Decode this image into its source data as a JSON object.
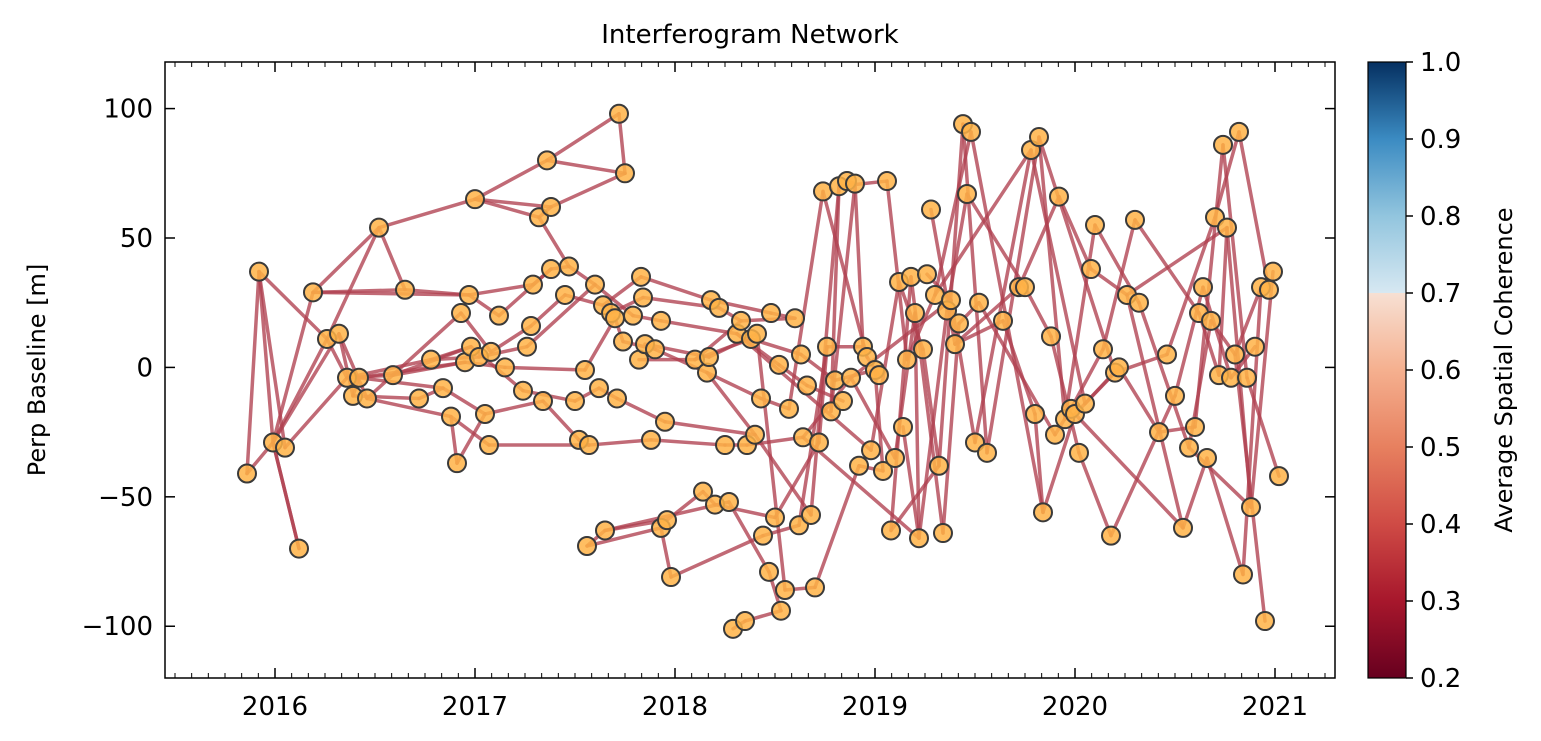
{
  "chart_data": {
    "type": "network",
    "title": "Interferogram Network",
    "xlabel": "",
    "ylabel": "Perp Baseline [m]",
    "x_unit": "year",
    "xlim": [
      2015.45,
      2021.3
    ],
    "ylim": [
      -120,
      118
    ],
    "x_ticks": [
      2016,
      2017,
      2018,
      2019,
      2020,
      2021
    ],
    "x_tick_labels": [
      "2016",
      "2017",
      "2018",
      "2019",
      "2020",
      "2021"
    ],
    "y_ticks": [
      -100,
      -50,
      0,
      50,
      100
    ],
    "y_tick_labels": [
      "−100",
      "−50",
      "0",
      "50",
      "100"
    ],
    "grid": false,
    "colorbar": {
      "label": "Average Spatial Coherence",
      "range": [
        0.2,
        1.0
      ],
      "ticks": [
        0.2,
        0.3,
        0.4,
        0.5,
        0.6,
        0.7,
        0.8,
        0.9,
        1.0
      ],
      "tick_labels": [
        "0.2",
        "0.3",
        "0.4",
        "0.5",
        "0.6",
        "0.7",
        "0.8",
        "0.9",
        "1.0"
      ],
      "masked_below": 0.7
    },
    "colors": {
      "node_fill": "#ffb347",
      "node_edge": "#3a3a3a",
      "edge": "#b0404f"
    },
    "edge_coherence": 0.38,
    "nodes": [
      [
        2015.86,
        -41
      ],
      [
        2015.92,
        37
      ],
      [
        2015.99,
        -29
      ],
      [
        2016.05,
        -31
      ],
      [
        2016.12,
        -70
      ],
      [
        2016.19,
        29
      ],
      [
        2016.26,
        11
      ],
      [
        2016.32,
        13
      ],
      [
        2016.36,
        -4
      ],
      [
        2016.39,
        -11
      ],
      [
        2016.42,
        -4
      ],
      [
        2016.46,
        -12
      ],
      [
        2016.52,
        54
      ],
      [
        2016.59,
        -3
      ],
      [
        2016.65,
        30
      ],
      [
        2016.72,
        -12
      ],
      [
        2016.78,
        3
      ],
      [
        2016.84,
        -8
      ],
      [
        2016.88,
        -19
      ],
      [
        2016.91,
        -37
      ],
      [
        2016.93,
        21
      ],
      [
        2016.95,
        2
      ],
      [
        2016.97,
        28
      ],
      [
        2016.98,
        8
      ],
      [
        2017.0,
        65
      ],
      [
        2017.02,
        4
      ],
      [
        2017.05,
        -18
      ],
      [
        2017.07,
        -30
      ],
      [
        2017.08,
        6
      ],
      [
        2017.12,
        20
      ],
      [
        2017.15,
        0
      ],
      [
        2017.24,
        -9
      ],
      [
        2017.26,
        8
      ],
      [
        2017.28,
        16
      ],
      [
        2017.29,
        32
      ],
      [
        2017.32,
        58
      ],
      [
        2017.34,
        -13
      ],
      [
        2017.36,
        80
      ],
      [
        2017.38,
        62
      ],
      [
        2017.38,
        38
      ],
      [
        2017.45,
        28
      ],
      [
        2017.47,
        39
      ],
      [
        2017.5,
        -13
      ],
      [
        2017.52,
        -28
      ],
      [
        2017.55,
        -1
      ],
      [
        2017.56,
        -69
      ],
      [
        2017.57,
        -30
      ],
      [
        2017.6,
        32
      ],
      [
        2017.62,
        -8
      ],
      [
        2017.64,
        24
      ],
      [
        2017.65,
        -63
      ],
      [
        2017.68,
        21
      ],
      [
        2017.7,
        19
      ],
      [
        2017.71,
        -12
      ],
      [
        2017.72,
        98
      ],
      [
        2017.74,
        10
      ],
      [
        2017.75,
        75
      ],
      [
        2017.79,
        20
      ],
      [
        2017.82,
        3
      ],
      [
        2017.83,
        35
      ],
      [
        2017.84,
        27
      ],
      [
        2017.85,
        9
      ],
      [
        2017.88,
        -28
      ],
      [
        2017.9,
        7
      ],
      [
        2017.93,
        18
      ],
      [
        2017.93,
        -62
      ],
      [
        2017.95,
        -21
      ],
      [
        2017.96,
        -59
      ],
      [
        2017.98,
        -81
      ],
      [
        2018.1,
        3
      ],
      [
        2018.14,
        -48
      ],
      [
        2018.16,
        -2
      ],
      [
        2018.17,
        4
      ],
      [
        2018.18,
        26
      ],
      [
        2018.2,
        -53
      ],
      [
        2018.22,
        23
      ],
      [
        2018.25,
        -30
      ],
      [
        2018.27,
        -52
      ],
      [
        2018.29,
        -101
      ],
      [
        2018.31,
        13
      ],
      [
        2018.33,
        18
      ],
      [
        2018.35,
        -98
      ],
      [
        2018.36,
        -30
      ],
      [
        2018.38,
        11
      ],
      [
        2018.4,
        -26
      ],
      [
        2018.41,
        13
      ],
      [
        2018.43,
        -12
      ],
      [
        2018.44,
        -65
      ],
      [
        2018.47,
        -79
      ],
      [
        2018.48,
        21
      ],
      [
        2018.5,
        -58
      ],
      [
        2018.52,
        1
      ],
      [
        2018.53,
        -94
      ],
      [
        2018.55,
        -86
      ],
      [
        2018.57,
        -16
      ],
      [
        2018.6,
        19
      ],
      [
        2018.62,
        -61
      ],
      [
        2018.63,
        5
      ],
      [
        2018.64,
        -27
      ],
      [
        2018.66,
        -7
      ],
      [
        2018.68,
        -57
      ],
      [
        2018.7,
        -85
      ],
      [
        2018.72,
        -29
      ],
      [
        2018.74,
        68
      ],
      [
        2018.76,
        8
      ],
      [
        2018.78,
        -17
      ],
      [
        2018.8,
        -5
      ],
      [
        2018.82,
        70
      ],
      [
        2018.84,
        -13
      ],
      [
        2018.86,
        72
      ],
      [
        2018.88,
        -4
      ],
      [
        2018.9,
        71
      ],
      [
        2018.92,
        -38
      ],
      [
        2018.94,
        8
      ],
      [
        2018.96,
        4
      ],
      [
        2018.98,
        -32
      ],
      [
        2019.0,
        -1
      ],
      [
        2019.02,
        -3
      ],
      [
        2019.04,
        -40
      ],
      [
        2019.06,
        72
      ],
      [
        2019.08,
        -63
      ],
      [
        2019.1,
        -35
      ],
      [
        2019.12,
        33
      ],
      [
        2019.14,
        -23
      ],
      [
        2019.16,
        3
      ],
      [
        2019.18,
        35
      ],
      [
        2019.2,
        21
      ],
      [
        2019.22,
        -66
      ],
      [
        2019.24,
        7
      ],
      [
        2019.26,
        36
      ],
      [
        2019.28,
        61
      ],
      [
        2019.3,
        28
      ],
      [
        2019.32,
        -38
      ],
      [
        2019.34,
        -64
      ],
      [
        2019.36,
        22
      ],
      [
        2019.38,
        26
      ],
      [
        2019.4,
        9
      ],
      [
        2019.42,
        17
      ],
      [
        2019.44,
        94
      ],
      [
        2019.46,
        67
      ],
      [
        2019.48,
        91
      ],
      [
        2019.5,
        -29
      ],
      [
        2019.52,
        25
      ],
      [
        2019.56,
        -33
      ],
      [
        2019.64,
        18
      ],
      [
        2019.72,
        31
      ],
      [
        2019.75,
        31
      ],
      [
        2019.78,
        84
      ],
      [
        2019.8,
        -18
      ],
      [
        2019.82,
        89
      ],
      [
        2019.84,
        -56
      ],
      [
        2019.88,
        12
      ],
      [
        2019.9,
        -26
      ],
      [
        2019.92,
        66
      ],
      [
        2019.95,
        -20
      ],
      [
        2019.98,
        -16
      ],
      [
        2020.0,
        -18
      ],
      [
        2020.02,
        -33
      ],
      [
        2020.05,
        -14
      ],
      [
        2020.08,
        38
      ],
      [
        2020.1,
        55
      ],
      [
        2020.14,
        7
      ],
      [
        2020.18,
        -65
      ],
      [
        2020.2,
        -2
      ],
      [
        2020.22,
        0
      ],
      [
        2020.26,
        28
      ],
      [
        2020.3,
        57
      ],
      [
        2020.32,
        25
      ],
      [
        2020.42,
        -25
      ],
      [
        2020.46,
        5
      ],
      [
        2020.5,
        -11
      ],
      [
        2020.54,
        -62
      ],
      [
        2020.57,
        -31
      ],
      [
        2020.6,
        -23
      ],
      [
        2020.62,
        21
      ],
      [
        2020.64,
        31
      ],
      [
        2020.66,
        -35
      ],
      [
        2020.68,
        18
      ],
      [
        2020.7,
        58
      ],
      [
        2020.72,
        -3
      ],
      [
        2020.74,
        86
      ],
      [
        2020.76,
        54
      ],
      [
        2020.78,
        -4
      ],
      [
        2020.8,
        5
      ],
      [
        2020.82,
        91
      ],
      [
        2020.84,
        -80
      ],
      [
        2020.86,
        -4
      ],
      [
        2020.88,
        -54
      ],
      [
        2020.9,
        8
      ],
      [
        2020.93,
        31
      ],
      [
        2020.95,
        -98
      ],
      [
        2020.97,
        30
      ],
      [
        2020.99,
        37
      ],
      [
        2021.02,
        -42
      ]
    ],
    "edges": [
      [
        0,
        1
      ],
      [
        0,
        2
      ],
      [
        1,
        2
      ],
      [
        1,
        3
      ],
      [
        1,
        6
      ],
      [
        2,
        4
      ],
      [
        2,
        5
      ],
      [
        2,
        6
      ],
      [
        2,
        7
      ],
      [
        3,
        8
      ],
      [
        5,
        12
      ],
      [
        5,
        14
      ],
      [
        5,
        22
      ],
      [
        6,
        12
      ],
      [
        6,
        8
      ],
      [
        7,
        11
      ],
      [
        7,
        9
      ],
      [
        8,
        13
      ],
      [
        8,
        16
      ],
      [
        9,
        10
      ],
      [
        9,
        15
      ],
      [
        10,
        17
      ],
      [
        10,
        21
      ],
      [
        11,
        18
      ],
      [
        11,
        20
      ],
      [
        12,
        14
      ],
      [
        12,
        24
      ],
      [
        13,
        21
      ],
      [
        13,
        23
      ],
      [
        14,
        22
      ],
      [
        15,
        17
      ],
      [
        16,
        25
      ],
      [
        16,
        23
      ],
      [
        17,
        26
      ],
      [
        18,
        27
      ],
      [
        18,
        19
      ],
      [
        19,
        26
      ],
      [
        20,
        28
      ],
      [
        21,
        30
      ],
      [
        22,
        29
      ],
      [
        22,
        34
      ],
      [
        23,
        31
      ],
      [
        24,
        35
      ],
      [
        24,
        37
      ],
      [
        24,
        38
      ],
      [
        25,
        32
      ],
      [
        26,
        36
      ],
      [
        27,
        46
      ],
      [
        28,
        33
      ],
      [
        29,
        39
      ],
      [
        30,
        44
      ],
      [
        31,
        42
      ],
      [
        32,
        47
      ],
      [
        33,
        40
      ],
      [
        34,
        39
      ],
      [
        35,
        38
      ],
      [
        35,
        41
      ],
      [
        36,
        43
      ],
      [
        37,
        54
      ],
      [
        37,
        56
      ],
      [
        38,
        56
      ],
      [
        39,
        41
      ],
      [
        40,
        49
      ],
      [
        41,
        47
      ],
      [
        42,
        48
      ],
      [
        43,
        46
      ],
      [
        44,
        52
      ],
      [
        45,
        50
      ],
      [
        45,
        65
      ],
      [
        46,
        62
      ],
      [
        47,
        57
      ],
      [
        48,
        53
      ],
      [
        49,
        59
      ],
      [
        50,
        67
      ],
      [
        50,
        77
      ],
      [
        51,
        60
      ],
      [
        52,
        55
      ],
      [
        53,
        66
      ],
      [
        54,
        56
      ],
      [
        55,
        63
      ],
      [
        57,
        64
      ],
      [
        58,
        69
      ],
      [
        59,
        73
      ],
      [
        60,
        75
      ],
      [
        61,
        72
      ],
      [
        62,
        76
      ],
      [
        63,
        71
      ],
      [
        64,
        79
      ],
      [
        65,
        68
      ],
      [
        66,
        84
      ],
      [
        67,
        70
      ],
      [
        68,
        87
      ],
      [
        69,
        83
      ],
      [
        70,
        74
      ],
      [
        71,
        86
      ],
      [
        72,
        85
      ],
      [
        73,
        89
      ],
      [
        74,
        90
      ],
      [
        75,
        80
      ],
      [
        76,
        82
      ],
      [
        77,
        88
      ],
      [
        78,
        81
      ],
      [
        79,
        91
      ],
      [
        80,
        95
      ],
      [
        81,
        92
      ],
      [
        82,
        98
      ],
      [
        83,
        97
      ],
      [
        84,
        100
      ],
      [
        85,
        93
      ],
      [
        86,
        94
      ],
      [
        87,
        96
      ],
      [
        88,
        92
      ],
      [
        89,
        95
      ],
      [
        90,
        102
      ],
      [
        91,
        99
      ],
      [
        93,
        101
      ],
      [
        94,
        103
      ],
      [
        96,
        104
      ],
      [
        97,
        106
      ],
      [
        98,
        110
      ],
      [
        99,
        108
      ],
      [
        100,
        107
      ],
      [
        101,
        112
      ],
      [
        102,
        104
      ],
      [
        103,
        114
      ],
      [
        104,
        113
      ],
      [
        105,
        107
      ],
      [
        105,
        111
      ],
      [
        106,
        116
      ],
      [
        107,
        119
      ],
      [
        109,
        111
      ],
      [
        110,
        121
      ],
      [
        111,
        113
      ],
      [
        112,
        118
      ],
      [
        114,
        117
      ],
      [
        115,
        122
      ],
      [
        116,
        118
      ],
      [
        119,
        124
      ],
      [
        120,
        125
      ],
      [
        121,
        126
      ],
      [
        122,
        128
      ],
      [
        123,
        127
      ],
      [
        124,
        131
      ],
      [
        125,
        133
      ],
      [
        126,
        127
      ],
      [
        127,
        134
      ],
      [
        128,
        132
      ],
      [
        129,
        135
      ],
      [
        130,
        136
      ],
      [
        131,
        140
      ],
      [
        132,
        138
      ],
      [
        133,
        137
      ],
      [
        134,
        139
      ],
      [
        135,
        141
      ],
      [
        136,
        145
      ],
      [
        137,
        142
      ],
      [
        138,
        143
      ],
      [
        139,
        146
      ],
      [
        140,
        150
      ],
      [
        141,
        147
      ],
      [
        142,
        152
      ],
      [
        143,
        149
      ],
      [
        144,
        148
      ],
      [
        145,
        153
      ],
      [
        146,
        151
      ],
      [
        147,
        158
      ],
      [
        148,
        150
      ],
      [
        149,
        154
      ],
      [
        150,
        156
      ],
      [
        151,
        157
      ],
      [
        152,
        155
      ],
      [
        153,
        159
      ],
      [
        154,
        160
      ],
      [
        155,
        161
      ],
      [
        156,
        163
      ],
      [
        157,
        162
      ],
      [
        158,
        164
      ],
      [
        159,
        165
      ],
      [
        160,
        167
      ],
      [
        161,
        166
      ],
      [
        162,
        170
      ],
      [
        163,
        169
      ],
      [
        164,
        168
      ],
      [
        165,
        171
      ],
      [
        166,
        174
      ],
      [
        167,
        172
      ],
      [
        168,
        173
      ],
      [
        169,
        178
      ],
      [
        170,
        175
      ],
      [
        171,
        176
      ],
      [
        172,
        177
      ],
      [
        173,
        180
      ],
      [
        174,
        179
      ],
      [
        175,
        182
      ],
      [
        176,
        185
      ],
      [
        177,
        183
      ],
      [
        178,
        184
      ],
      [
        179,
        181
      ],
      [
        180,
        186
      ],
      [
        181,
        187
      ],
      [
        182,
        188
      ],
      [
        183,
        190
      ],
      [
        184,
        191
      ],
      [
        185,
        189
      ],
      [
        186,
        193
      ],
      [
        187,
        192
      ],
      [
        188,
        194
      ],
      [
        189,
        196
      ],
      [
        190,
        195
      ],
      [
        191,
        197
      ],
      [
        192,
        198
      ],
      [
        193,
        199
      ],
      [
        194,
        199
      ],
      [
        195,
        199
      ],
      [
        196,
        198
      ],
      [
        197,
        199
      ],
      [
        4,
        2
      ],
      [
        69,
        80
      ],
      [
        71,
        84
      ],
      [
        79,
        115
      ],
      [
        98,
        127
      ],
      [
        110,
        135
      ],
      [
        120,
        132
      ],
      [
        131,
        147
      ],
      [
        136,
        144
      ],
      [
        149,
        163
      ],
      [
        156,
        171
      ],
      [
        165,
        181
      ],
      [
        172,
        187
      ],
      [
        183,
        189
      ],
      [
        190,
        199
      ]
    ]
  }
}
